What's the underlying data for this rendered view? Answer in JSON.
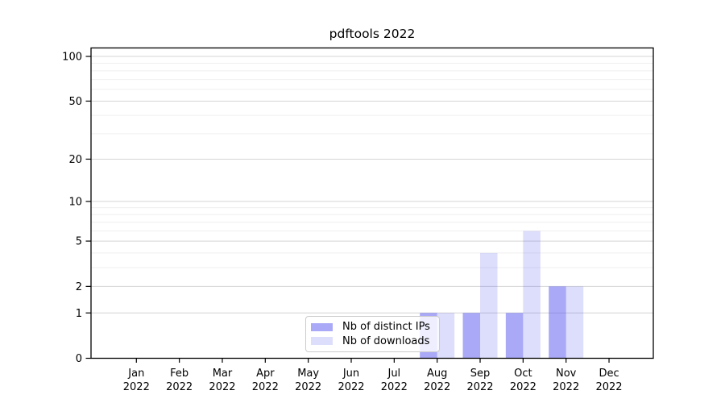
{
  "chart_data": {
    "type": "bar",
    "title": "pdftools 2022",
    "categories": [
      "Jan",
      "Feb",
      "Mar",
      "Apr",
      "May",
      "Jun",
      "Jul",
      "Aug",
      "Sep",
      "Oct",
      "Nov",
      "Dec"
    ],
    "x_tick_second_line": "2022",
    "series": [
      {
        "name": "Nb of distinct IPs",
        "color": "rgba(84,84,240,0.5)",
        "values": [
          0,
          0,
          0,
          0,
          0,
          0,
          0,
          1,
          1,
          1,
          2,
          0
        ]
      },
      {
        "name": "Nb of downloads",
        "color": "rgba(84,84,240,0.2)",
        "values": [
          0,
          0,
          0,
          0,
          0,
          0,
          0,
          1,
          4,
          6,
          2,
          0
        ]
      }
    ],
    "y_scale": "log1p",
    "ylim": [
      0,
      100
    ],
    "y_major_ticks": [
      0,
      1,
      2,
      5,
      10,
      20,
      50,
      100
    ],
    "y_minor_ticks": [
      3,
      4,
      6,
      7,
      8,
      9,
      30,
      40,
      60,
      70,
      80,
      90
    ],
    "grid": "both",
    "legend_position": "lower center",
    "colors": {
      "major_grid": "#d4d4d4",
      "minor_grid": "#efefef",
      "spine": "#000000",
      "tick_text": "#000000"
    }
  }
}
